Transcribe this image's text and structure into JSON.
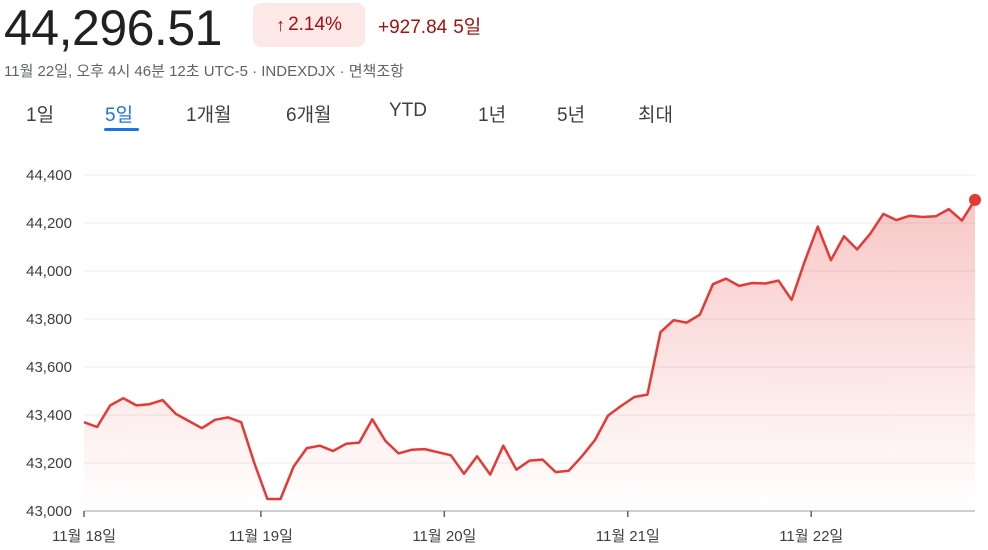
{
  "header": {
    "price": "44,296.51",
    "change_percent": "2.14%",
    "change_abs": "+927.84",
    "period_label": "5일",
    "arrow_icon": "arrow-up-icon",
    "meta": "11월 22일, 오후 4시 46분 12초 UTC-5 · INDEXDJX · 면책조항"
  },
  "tabs": [
    {
      "label": "1일"
    },
    {
      "label": "5일",
      "active": true
    },
    {
      "label": "1개월"
    },
    {
      "label": "6개월"
    },
    {
      "label": "YTD"
    },
    {
      "label": "1년"
    },
    {
      "label": "5년"
    },
    {
      "label": "최대"
    }
  ],
  "colors": {
    "line": "#e53935",
    "badge_bg": "#fce8e6",
    "negative_text": "#a50e0e",
    "active_tab": "#1a73e8",
    "grid": "#ebebeb"
  },
  "chart_data": {
    "type": "area",
    "ylim": [
      43000,
      44400
    ],
    "yticks": [
      "44,400",
      "44,200",
      "44,000",
      "43,800",
      "43,600",
      "43,400",
      "43,200",
      "43,000"
    ],
    "ytick_values": [
      44400,
      44200,
      44000,
      43800,
      43600,
      43400,
      43200,
      43000
    ],
    "xticks": [
      "11월 18일",
      "11월 19일",
      "11월 20일",
      "11월 21일",
      "11월 22일"
    ],
    "grid": true,
    "series": [
      {
        "values": [
          43370,
          43350,
          43440,
          43470,
          43440,
          43445,
          43462,
          43405,
          43375,
          43345,
          43380,
          43390,
          43370,
          43200,
          43050,
          43050,
          43185,
          43262,
          43272,
          43250,
          43280,
          43285,
          43382,
          43292,
          43240,
          43255,
          43258,
          43245,
          43232,
          43155,
          43228,
          43152,
          43272,
          43172,
          43210,
          43214,
          43162,
          43168,
          43228,
          43296,
          43398,
          43438,
          43475,
          43485,
          43745,
          43795,
          43785,
          43818,
          43945,
          43968,
          43938,
          43950,
          43948,
          43960,
          43880,
          44040,
          44185,
          44045,
          44145,
          44090,
          44155,
          44238,
          44212,
          44230,
          44225,
          44228,
          44258,
          44210,
          44296.51
        ]
      }
    ]
  }
}
